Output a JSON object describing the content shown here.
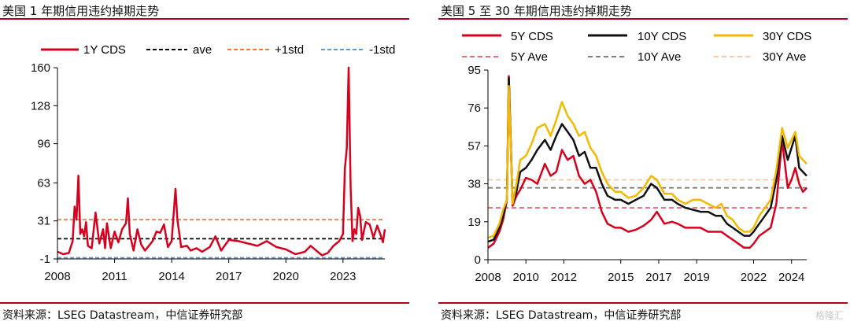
{
  "left": {
    "title": "美国 1 年期信用违约掉期走势",
    "source": "资料来源：LSEG Datastream，中信证券研究部",
    "chart_data": {
      "type": "line",
      "title": "美国 1 年期信用违约掉期走势",
      "x_ticks": [
        "2008",
        "2011",
        "2014",
        "2017",
        "2020",
        "2023"
      ],
      "y_ticks": [
        -1,
        31,
        63,
        96,
        128,
        160
      ],
      "ylim": [
        -1,
        160
      ],
      "xlim": [
        2008.0,
        2025.2
      ],
      "grid": false,
      "legend_position": "top",
      "legend": [
        "1Y CDS",
        "ave",
        "+1std",
        "-1std"
      ],
      "reference_lines": [
        {
          "name": "ave",
          "value": 16,
          "color": "#000000",
          "style": "dashed"
        },
        {
          "name": "+1std",
          "value": 32,
          "color": "#ed7d31",
          "style": "dashed"
        },
        {
          "name": "-1std",
          "value": 0,
          "color": "#5b9bd5",
          "style": "dashed"
        }
      ],
      "series": [
        {
          "name": "1Y CDS",
          "color": "#d7001e",
          "x": [
            2008.0,
            2008.3,
            2008.6,
            2008.8,
            2008.9,
            2009.0,
            2009.1,
            2009.2,
            2009.3,
            2009.4,
            2009.5,
            2009.6,
            2009.8,
            2010.0,
            2010.2,
            2010.4,
            2010.5,
            2010.6,
            2010.8,
            2011.0,
            2011.2,
            2011.4,
            2011.6,
            2011.7,
            2011.8,
            2012.0,
            2012.2,
            2012.4,
            2012.6,
            2012.8,
            2013.0,
            2013.2,
            2013.4,
            2013.6,
            2013.8,
            2014.0,
            2014.2,
            2014.3,
            2014.5,
            2014.8,
            2015.0,
            2015.3,
            2015.6,
            2016.0,
            2016.3,
            2016.6,
            2017.0,
            2017.5,
            2018.0,
            2018.5,
            2019.0,
            2019.5,
            2020.0,
            2020.5,
            2021.0,
            2021.3,
            2021.6,
            2021.9,
            2022.2,
            2022.5,
            2022.8,
            2023.0,
            2023.1,
            2023.2,
            2023.3,
            2023.4,
            2023.5,
            2023.6,
            2023.7,
            2023.8,
            2023.9,
            2024.0,
            2024.2,
            2024.4,
            2024.6,
            2024.8,
            2025.0,
            2025.1,
            2025.2
          ],
          "y": [
            5,
            3,
            4,
            14,
            43,
            32,
            69,
            20,
            24,
            18,
            30,
            10,
            8,
            38,
            12,
            24,
            8,
            29,
            8,
            22,
            13,
            24,
            29,
            50,
            20,
            6,
            24,
            11,
            6,
            10,
            14,
            22,
            21,
            28,
            9,
            14,
            58,
            32,
            9,
            10,
            6,
            8,
            5,
            9,
            18,
            6,
            15,
            14,
            12,
            10,
            14,
            9,
            7,
            3,
            5,
            10,
            6,
            2,
            4,
            10,
            14,
            20,
            75,
            92,
            160,
            60,
            14,
            24,
            20,
            42,
            35,
            15,
            30,
            28,
            17,
            27,
            18,
            13,
            24
          ]
        }
      ]
    },
    "legend_labels": {
      "s1": "1Y CDS",
      "ave": "ave",
      "plus": "+1std",
      "minus": "-1std"
    }
  },
  "right": {
    "title": "美国 5 至 30 年期信用违约掉期走势",
    "source": "资料来源：LSEG Datastream，中信证券研究部",
    "watermark": "格隆汇",
    "chart_data": {
      "type": "line",
      "title": "美国 5 至 30 年期信用违约掉期走势",
      "x_ticks": [
        "2008",
        "2010",
        "2012",
        "2015",
        "2017",
        "2019",
        "2022",
        "2024"
      ],
      "y_ticks": [
        0,
        19,
        38,
        57,
        76,
        95
      ],
      "ylim": [
        0,
        95
      ],
      "xlim": [
        2008.0,
        2024.8
      ],
      "grid": false,
      "legend_position": "top",
      "legend": [
        "5Y CDS",
        "10Y CDS",
        "30Y CDS",
        "5Y Ave",
        "10Y Ave",
        "30Y Ave"
      ],
      "reference_lines": [
        {
          "name": "5Y Ave",
          "value": 26,
          "color": "#e86a78",
          "style": "dashed"
        },
        {
          "name": "10Y Ave",
          "value": 36,
          "color": "#7f7f7f",
          "style": "dashed"
        },
        {
          "name": "30Y Ave",
          "value": 40,
          "color": "#f8c8a0",
          "style": "dashed"
        }
      ],
      "x": [
        2008.0,
        2008.3,
        2008.6,
        2008.8,
        2009.0,
        2009.1,
        2009.3,
        2009.5,
        2009.7,
        2010.0,
        2010.3,
        2010.6,
        2011.0,
        2011.3,
        2011.6,
        2011.9,
        2012.2,
        2012.5,
        2012.8,
        2013.1,
        2013.4,
        2013.7,
        2014.0,
        2014.3,
        2014.7,
        2015.0,
        2015.4,
        2015.8,
        2016.2,
        2016.6,
        2016.9,
        2017.3,
        2017.7,
        2018.0,
        2018.4,
        2018.8,
        2019.2,
        2019.6,
        2020.0,
        2020.3,
        2020.6,
        2020.9,
        2021.2,
        2021.5,
        2021.8,
        2022.0,
        2022.3,
        2022.6,
        2022.9,
        2023.2,
        2023.5,
        2023.8,
        2024.0,
        2024.2,
        2024.4,
        2024.6,
        2024.8
      ],
      "series": [
        {
          "name": "5Y CDS",
          "color": "#d7001e",
          "values": [
            6,
            8,
            14,
            20,
            30,
            92,
            27,
            32,
            35,
            41,
            40,
            38,
            48,
            42,
            44,
            55,
            50,
            52,
            42,
            38,
            40,
            34,
            24,
            18,
            16,
            16,
            14,
            15,
            17,
            20,
            24,
            18,
            19,
            18,
            16,
            16,
            16,
            14,
            14,
            14,
            12,
            10,
            8,
            6,
            6,
            8,
            12,
            14,
            16,
            28,
            60,
            36,
            40,
            46,
            38,
            34,
            36
          ]
        },
        {
          "name": "10Y CDS",
          "color": "#111111",
          "values": [
            9,
            10,
            16,
            22,
            30,
            91,
            28,
            34,
            44,
            46,
            50,
            55,
            60,
            55,
            62,
            68,
            64,
            60,
            52,
            54,
            46,
            46,
            38,
            32,
            30,
            30,
            28,
            30,
            32,
            38,
            36,
            30,
            30,
            28,
            26,
            25,
            24,
            24,
            22,
            22,
            18,
            16,
            14,
            12,
            12,
            14,
            18,
            22,
            26,
            40,
            62,
            50,
            56,
            62,
            46,
            44,
            42
          ]
        },
        {
          "name": "30Y CDS",
          "color": "#f5b800",
          "values": [
            11,
            12,
            18,
            25,
            30,
            87,
            28,
            38,
            50,
            52,
            58,
            66,
            68,
            62,
            70,
            79,
            72,
            68,
            62,
            64,
            56,
            52,
            44,
            38,
            34,
            34,
            31,
            32,
            36,
            42,
            40,
            33,
            33,
            30,
            28,
            30,
            30,
            28,
            26,
            28,
            22,
            20,
            16,
            14,
            14,
            16,
            22,
            26,
            30,
            45,
            66,
            56,
            60,
            64,
            52,
            50,
            48
          ]
        }
      ]
    },
    "legend_labels": {
      "s5": "5Y CDS",
      "s10": "10Y CDS",
      "s30": "30Y CDS",
      "a5": "5Y Ave",
      "a10": "10Y Ave",
      "a30": "30Y Ave"
    }
  }
}
